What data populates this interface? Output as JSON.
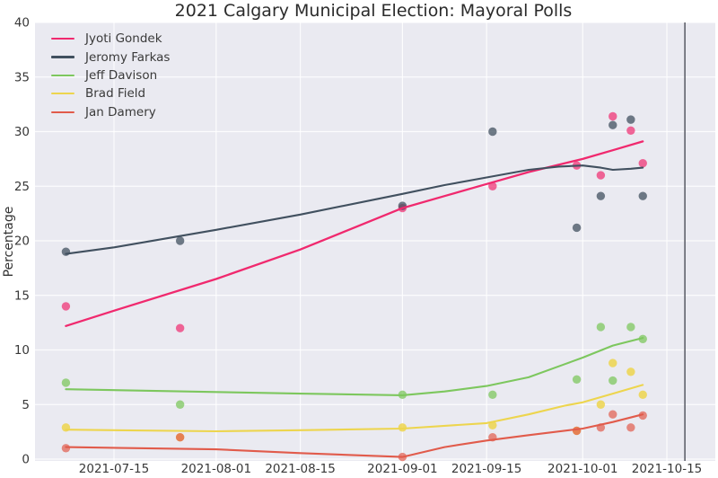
{
  "chart_data": {
    "type": "scatter",
    "title": "2021 Calgary Municipal Election: Mayoral Polls",
    "xlabel": "",
    "ylabel": "Percentage",
    "ylim": [
      0,
      40
    ],
    "y_ticks": [
      0,
      5,
      10,
      15,
      20,
      25,
      30,
      35,
      40
    ],
    "x_tick_labels": [
      "2021-07-15",
      "2021-08-01",
      "2021-08-15",
      "2021-09-01",
      "2021-09-15",
      "2021-10-01",
      "2021-10-15"
    ],
    "x_range": [
      "2021-07-02",
      "2021-10-23"
    ],
    "grid": true,
    "legend_position": "upper-left",
    "plot_background": "#eaeaf1",
    "grid_color": "#ffffff",
    "poll_dates": [
      "2021-07-07",
      "2021-07-26",
      "2021-09-01",
      "2021-09-16",
      "2021-09-30",
      "2021-10-04",
      "2021-10-06",
      "2021-10-09",
      "2021-10-11"
    ],
    "series": [
      {
        "name": "Jyoti Gondek",
        "color": "#f0296e",
        "scatter_opacity": 0.7,
        "values": [
          14,
          12,
          23,
          25,
          26.9,
          26,
          31.4,
          30.1,
          27.1
        ],
        "trend": [
          [
            "2021-07-07",
            12.2
          ],
          [
            "2021-07-15",
            13.6
          ],
          [
            "2021-08-01",
            16.5
          ],
          [
            "2021-08-15",
            19.2
          ],
          [
            "2021-09-01",
            23.0
          ],
          [
            "2021-09-08",
            24.1
          ],
          [
            "2021-09-15",
            25.2
          ],
          [
            "2021-09-22",
            26.3
          ],
          [
            "2021-10-01",
            27.5
          ],
          [
            "2021-10-06",
            28.3
          ],
          [
            "2021-10-11",
            29.1
          ]
        ]
      },
      {
        "name": "Jeromy Farkas",
        "color": "#41505f",
        "scatter_opacity": 0.75,
        "values": [
          19,
          20,
          23.2,
          30,
          21.2,
          24.1,
          30.6,
          31.1,
          24.1
        ],
        "trend": [
          [
            "2021-07-07",
            18.8
          ],
          [
            "2021-07-15",
            19.4
          ],
          [
            "2021-08-01",
            21.0
          ],
          [
            "2021-08-15",
            22.4
          ],
          [
            "2021-09-01",
            24.3
          ],
          [
            "2021-09-08",
            25.1
          ],
          [
            "2021-09-15",
            25.8
          ],
          [
            "2021-09-22",
            26.5
          ],
          [
            "2021-09-27",
            26.8
          ],
          [
            "2021-10-01",
            26.9
          ],
          [
            "2021-10-04",
            26.7
          ],
          [
            "2021-10-06",
            26.5
          ],
          [
            "2021-10-09",
            26.6
          ],
          [
            "2021-10-11",
            26.7
          ]
        ]
      },
      {
        "name": "Jeff Davison",
        "color": "#7dc75e",
        "scatter_opacity": 0.75,
        "values": [
          7,
          5,
          5.9,
          5.9,
          7.3,
          12.1,
          7.2,
          12.1,
          11
        ],
        "trend": [
          [
            "2021-07-07",
            6.4
          ],
          [
            "2021-08-01",
            6.15
          ],
          [
            "2021-08-15",
            6.0
          ],
          [
            "2021-09-01",
            5.85
          ],
          [
            "2021-09-08",
            6.2
          ],
          [
            "2021-09-15",
            6.7
          ],
          [
            "2021-09-22",
            7.5
          ],
          [
            "2021-09-28",
            8.7
          ],
          [
            "2021-10-01",
            9.3
          ],
          [
            "2021-10-06",
            10.4
          ],
          [
            "2021-10-11",
            11.1
          ]
        ]
      },
      {
        "name": "Brad Field",
        "color": "#edd54e",
        "scatter_opacity": 0.85,
        "values": [
          2.9,
          2,
          2.9,
          3.1,
          2.6,
          5,
          8.8,
          8,
          5.9
        ],
        "trend": [
          [
            "2021-07-07",
            2.7
          ],
          [
            "2021-08-01",
            2.55
          ],
          [
            "2021-08-15",
            2.65
          ],
          [
            "2021-09-01",
            2.8
          ],
          [
            "2021-09-15",
            3.3
          ],
          [
            "2021-09-22",
            4.1
          ],
          [
            "2021-09-28",
            4.9
          ],
          [
            "2021-10-01",
            5.2
          ],
          [
            "2021-10-06",
            6.0
          ],
          [
            "2021-10-11",
            6.8
          ]
        ]
      },
      {
        "name": "Jan Damery",
        "color": "#e15b4b",
        "scatter_opacity": 0.7,
        "values": [
          1,
          2,
          0.2,
          2,
          2.6,
          2.9,
          4.1,
          2.9,
          4
        ],
        "trend": [
          [
            "2021-07-07",
            1.1
          ],
          [
            "2021-08-01",
            0.9
          ],
          [
            "2021-08-15",
            0.55
          ],
          [
            "2021-09-01",
            0.2
          ],
          [
            "2021-09-08",
            1.1
          ],
          [
            "2021-09-15",
            1.7
          ],
          [
            "2021-09-22",
            2.2
          ],
          [
            "2021-10-01",
            2.8
          ],
          [
            "2021-10-06",
            3.4
          ],
          [
            "2021-10-11",
            4.1
          ]
        ]
      }
    ],
    "annotations": [
      {
        "type": "vline",
        "date": "2021-10-18",
        "color": "#60626c"
      }
    ]
  }
}
